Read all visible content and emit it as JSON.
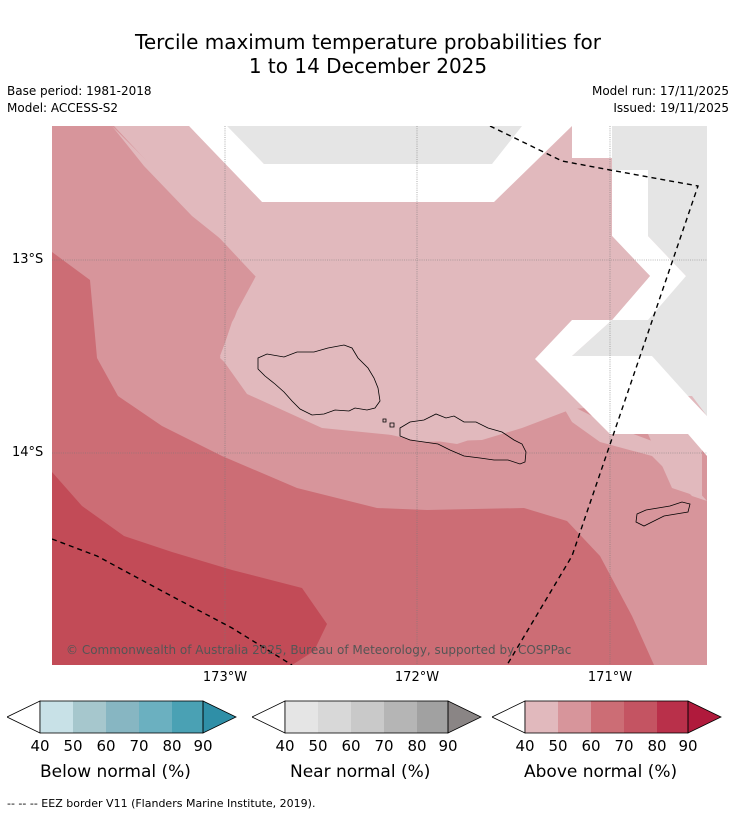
{
  "title": {
    "line1": "Tercile maximum temperature probabilities for",
    "line2": "1 to 14 December 2025"
  },
  "meta": {
    "base_period": "Base period: 1981-2018",
    "model": "Model: ACCESS-S2",
    "model_run": "Model run: 17/11/2025",
    "issued": "Issued: 19/11/2025"
  },
  "map": {
    "lat_labels": [
      "13°S",
      "14°S"
    ],
    "lon_labels": [
      "173°W",
      "172°W",
      "171°W"
    ],
    "copyright": "© Commonwealth of Australia 2025, Bureau of Meteorology, supported by COSPPac",
    "colors": {
      "above_40": "#e1b9bd",
      "above_50": "#d7959b",
      "above_60": "#cc6d75",
      "above_70": "#c24b57",
      "near_40": "#e5e5e5"
    }
  },
  "colorbars": [
    {
      "title": "Below normal (%)",
      "ticks": [
        "40",
        "50",
        "60",
        "70",
        "80",
        "90"
      ],
      "colors": [
        "#c8e1e7",
        "#a6c7cd",
        "#87b6c2",
        "#6bb0c0",
        "#4aa1b4",
        "#2f8fa7"
      ]
    },
    {
      "title": "Near normal (%)",
      "ticks": [
        "40",
        "50",
        "60",
        "70",
        "80",
        "90"
      ],
      "colors": [
        "#e5e5e5",
        "#d8d8d8",
        "#c9c9c9",
        "#b5b5b5",
        "#a1a1a1",
        "#8a8585"
      ]
    },
    {
      "title": "Above normal (%)",
      "ticks": [
        "40",
        "50",
        "60",
        "70",
        "80",
        "90"
      ],
      "colors": [
        "#e1b9bd",
        "#d7959b",
        "#cc6d75",
        "#c45462",
        "#b9304a",
        "#b01a3c"
      ]
    }
  ],
  "footnote": "-- -- -- EEZ border V11 (Flanders Marine Institute, 2019)."
}
